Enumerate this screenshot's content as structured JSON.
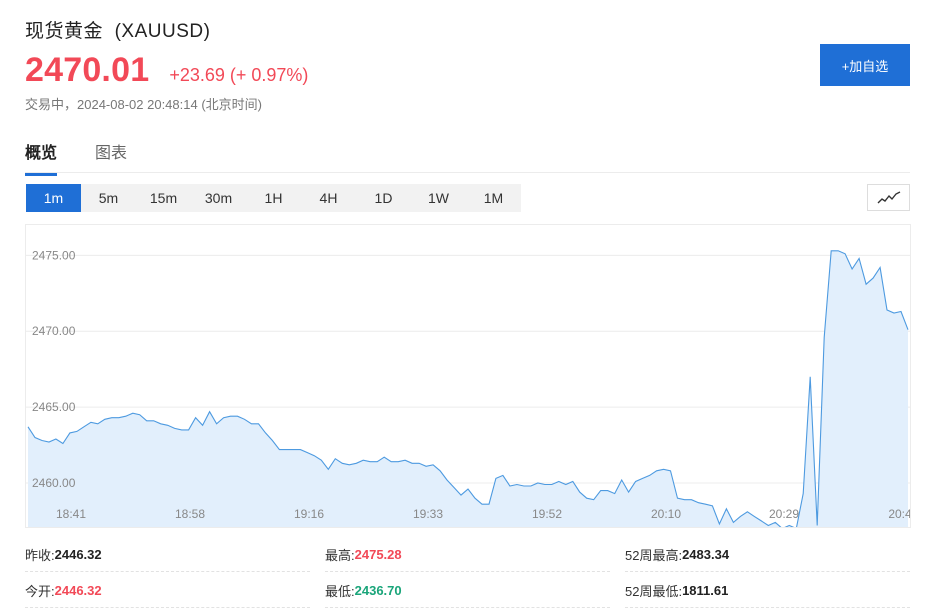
{
  "header": {
    "name": "现货黄金",
    "symbol": "(XAUUSD)",
    "price": "2470.01",
    "change": "+23.69 (+ 0.97%)",
    "status": "交易中，2024-08-02 20:48:14 (北京时间)"
  },
  "add_button_label": "+加自选",
  "tabs": [
    {
      "label": "概览",
      "active": true
    },
    {
      "label": "图表",
      "active": false
    }
  ],
  "periods": [
    {
      "label": "1m",
      "active": true
    },
    {
      "label": "5m",
      "active": false
    },
    {
      "label": "15m",
      "active": false
    },
    {
      "label": "30m",
      "active": false
    },
    {
      "label": "1H",
      "active": false
    },
    {
      "label": "4H",
      "active": false
    },
    {
      "label": "1D",
      "active": false
    },
    {
      "label": "1W",
      "active": false
    },
    {
      "label": "1M",
      "active": false
    }
  ],
  "chart_type_icon": "line-chart-icon",
  "colors": {
    "accent": "#1f6fd6",
    "up": "#f24957",
    "down": "#1aa57a",
    "line": "#4d9ae0",
    "fill": "#e2effc"
  },
  "chart_data": {
    "type": "area",
    "y_ticks": [
      "2475.00",
      "2470.00",
      "2465.00",
      "2460.00"
    ],
    "x_ticks": [
      "18:41",
      "18:58",
      "19:16",
      "19:33",
      "19:52",
      "20:10",
      "20:29",
      "20:4"
    ],
    "ylim": [
      2457.1,
      2477.0
    ],
    "grid": true,
    "series": [
      {
        "values": [
          2463.7,
          2463.0,
          2462.8,
          2462.7,
          2462.9,
          2462.6,
          2463.3,
          2463.4,
          2463.7,
          2464.0,
          2463.9,
          2464.2,
          2464.3,
          2464.3,
          2464.4,
          2464.6,
          2464.5,
          2464.1,
          2464.1,
          2463.9,
          2463.8,
          2463.6,
          2463.5,
          2463.5,
          2464.3,
          2463.8,
          2464.7,
          2463.9,
          2464.3,
          2464.4,
          2464.4,
          2464.2,
          2463.9,
          2463.9,
          2463.3,
          2462.8,
          2462.2,
          2462.2,
          2462.2,
          2462.2,
          2462.0,
          2461.8,
          2461.5,
          2460.9,
          2461.6,
          2461.3,
          2461.2,
          2461.3,
          2461.5,
          2461.4,
          2461.4,
          2461.7,
          2461.4,
          2461.4,
          2461.5,
          2461.3,
          2461.3,
          2461.1,
          2461.2,
          2460.8,
          2460.2,
          2459.7,
          2459.2,
          2459.6,
          2459.0,
          2458.6,
          2458.6,
          2460.3,
          2460.5,
          2459.8,
          2459.9,
          2459.8,
          2459.8,
          2460.0,
          2459.9,
          2459.9,
          2460.1,
          2459.9,
          2460.1,
          2459.4,
          2459.0,
          2458.9,
          2459.5,
          2459.5,
          2459.3,
          2460.2,
          2459.4,
          2460.1,
          2460.3,
          2460.5,
          2460.8,
          2460.9,
          2460.8,
          2459.0,
          2458.9,
          2458.9,
          2458.7,
          2458.6,
          2458.5,
          2457.3,
          2458.3,
          2457.4,
          2457.8,
          2458.1,
          2457.8,
          2457.5,
          2457.2,
          2457.4,
          2457.0,
          2457.2,
          2457.0,
          2459.3,
          2467.0,
          2457.2,
          2469.6,
          2475.3,
          2475.3,
          2475.1,
          2474.1,
          2474.8,
          2473.1,
          2473.5,
          2474.2,
          2471.4,
          2471.2,
          2471.3,
          2470.1
        ]
      }
    ]
  },
  "stats": {
    "prev_close": {
      "label": "昨收:",
      "value": "2446.32"
    },
    "open": {
      "label": "今开:",
      "value": "2446.32"
    },
    "high": {
      "label": "最高:",
      "value": "2475.28"
    },
    "low": {
      "label": "最低:",
      "value": "2436.70"
    },
    "high_52w": {
      "label": "52周最高:",
      "value": "2483.34"
    },
    "low_52w": {
      "label": "52周最低:",
      "value": "1811.61"
    }
  }
}
